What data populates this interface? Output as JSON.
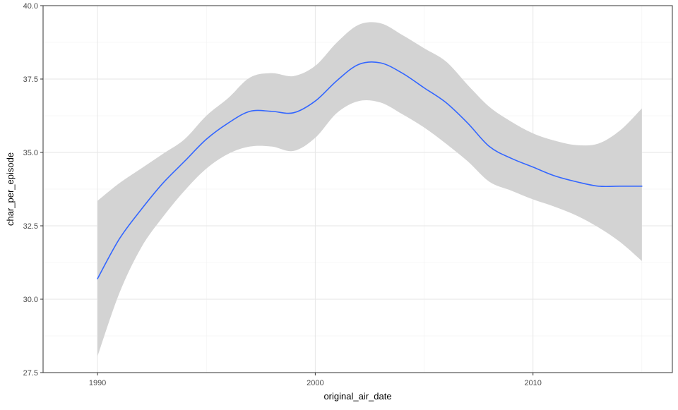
{
  "chart_data": {
    "type": "line",
    "title": "",
    "xlabel": "original_air_date",
    "ylabel": "char_per_episode",
    "xlim": [
      1987.5,
      2016.4
    ],
    "ylim": [
      27.5,
      40.0
    ],
    "x_ticks": [
      1990,
      2000,
      2010
    ],
    "x_tick_labels": [
      "1990",
      "2000",
      "2010"
    ],
    "y_ticks": [
      27.5,
      30.0,
      32.5,
      35.0,
      37.5,
      40.0
    ],
    "y_tick_labels": [
      "27.5",
      "30.0",
      "32.5",
      "35.0",
      "37.5",
      "40.0"
    ],
    "grid": true,
    "line_color": "#3366FF",
    "band_color": "#D3D3D3",
    "series": [
      {
        "values": [
          {
            "x": 1990.0,
            "y": 30.7,
            "lower": 28.05,
            "upper": 33.35
          },
          {
            "x": 1991.0,
            "y": 32.05,
            "lower": 30.2,
            "upper": 33.95
          },
          {
            "x": 1992.0,
            "y": 33.05,
            "lower": 31.75,
            "upper": 34.45
          },
          {
            "x": 1993.0,
            "y": 33.95,
            "lower": 32.8,
            "upper": 34.95
          },
          {
            "x": 1994.0,
            "y": 34.7,
            "lower": 33.7,
            "upper": 35.45
          },
          {
            "x": 1995.0,
            "y": 35.45,
            "lower": 34.45,
            "upper": 36.25
          },
          {
            "x": 1996.0,
            "y": 36.0,
            "lower": 34.95,
            "upper": 36.85
          },
          {
            "x": 1997.0,
            "y": 36.4,
            "lower": 35.2,
            "upper": 37.55
          },
          {
            "x": 1998.0,
            "y": 36.4,
            "lower": 35.2,
            "upper": 37.7
          },
          {
            "x": 1999.0,
            "y": 36.35,
            "lower": 35.05,
            "upper": 37.6
          },
          {
            "x": 2000.0,
            "y": 36.75,
            "lower": 35.5,
            "upper": 37.95
          },
          {
            "x": 2001.0,
            "y": 37.45,
            "lower": 36.35,
            "upper": 38.75
          },
          {
            "x": 2002.0,
            "y": 38.0,
            "lower": 36.75,
            "upper": 39.35
          },
          {
            "x": 2003.0,
            "y": 38.05,
            "lower": 36.7,
            "upper": 39.4
          },
          {
            "x": 2004.0,
            "y": 37.7,
            "lower": 36.3,
            "upper": 39.0
          },
          {
            "x": 2005.0,
            "y": 37.2,
            "lower": 35.85,
            "upper": 38.55
          },
          {
            "x": 2006.0,
            "y": 36.7,
            "lower": 35.3,
            "upper": 38.1
          },
          {
            "x": 2007.0,
            "y": 36.0,
            "lower": 34.7,
            "upper": 37.3
          },
          {
            "x": 2008.0,
            "y": 35.2,
            "lower": 34.0,
            "upper": 36.55
          },
          {
            "x": 2009.0,
            "y": 34.8,
            "lower": 33.7,
            "upper": 36.05
          },
          {
            "x": 2010.0,
            "y": 34.5,
            "lower": 33.4,
            "upper": 35.65
          },
          {
            "x": 2011.0,
            "y": 34.2,
            "lower": 33.15,
            "upper": 35.4
          },
          {
            "x": 2012.0,
            "y": 34.0,
            "lower": 32.85,
            "upper": 35.25
          },
          {
            "x": 2013.0,
            "y": 33.85,
            "lower": 32.45,
            "upper": 35.3
          },
          {
            "x": 2014.0,
            "y": 33.85,
            "lower": 31.95,
            "upper": 35.75
          },
          {
            "x": 2015.0,
            "y": 33.85,
            "lower": 31.3,
            "upper": 36.5
          }
        ]
      }
    ]
  }
}
